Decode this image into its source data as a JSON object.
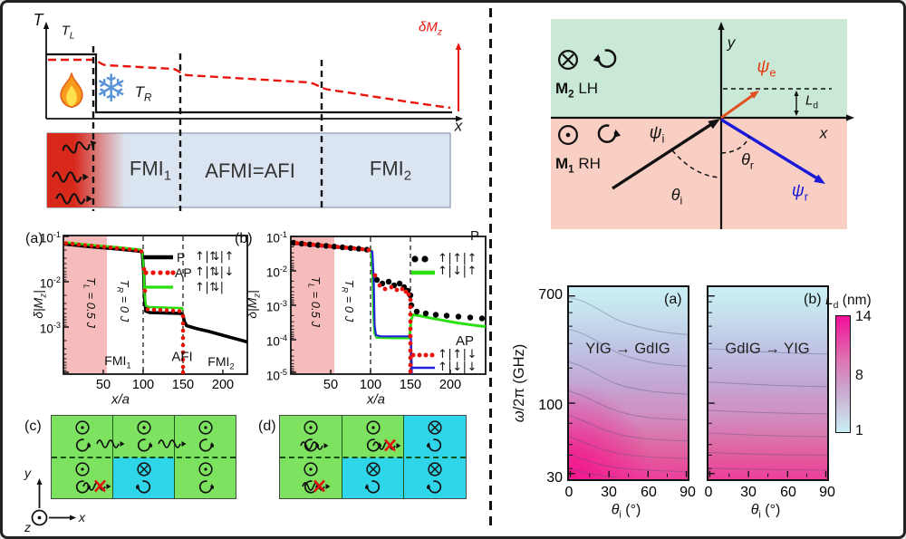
{
  "schematic": {
    "axis_t": "T",
    "axis_x": "x",
    "t_left": "T<sub>L</sub>",
    "t_right": "T<sub>R</sub>",
    "delta_mz": "δM<sub>z</sub>",
    "regions": [
      "FMI<sub>1</sub>",
      "AFMI=AFI",
      "FMI<sub>2</sub>"
    ],
    "snowflake_glyph": "❄",
    "colors": {
      "strip": "#dbe5f1",
      "hot_gradient": "#d8281c",
      "curve": "#e8150c"
    }
  },
  "panel_a": {
    "tag": "(a)",
    "ylabel": "δ|M<sub>z</sub>|",
    "yticks": [
      "10<sup>-1</sup>",
      "10<sup>-2</sup>",
      "10<sup>-3</sup>"
    ],
    "xticks": [
      "50",
      "100",
      "150",
      "200"
    ],
    "xlabel": "x/a",
    "zone_left": "T<sub>L</sub> = 0.5 <i>J</i>",
    "zone_right": "T<sub>R</sub> = 0 <i>J</i>",
    "region_labels": [
      "FMI<sub>1</sub>",
      "AFI",
      "FMI<sub>2</sub>"
    ],
    "legend": {
      "p": "P",
      "ap": "AP",
      "rows": [
        "↑|⇅|↑",
        "↑|⇅|↓",
        "↑|⇅|"
      ]
    }
  },
  "panel_b": {
    "tag": "(b)",
    "ylabel": "δ|M<sub>z</sub>|",
    "yticks": [
      "10<sup>-1</sup>",
      "10<sup>-2</sup>",
      "10<sup>-3</sup>",
      "10<sup>-4</sup>",
      "10<sup>-5</sup>"
    ],
    "xticks": [
      "50",
      "100",
      "150",
      "200"
    ],
    "xlabel": "x/a",
    "zone_left": "T<sub>L</sub> = 0.5 <i>J</i>",
    "zone_right": "T<sub>R</sub> = 0 <i>J</i>",
    "legend": {
      "p": "P",
      "ap": "AP",
      "p_rows": [
        "↑|↑|↑",
        "↑|↓|↑"
      ],
      "ap_rows": [
        "↑|↑|↓",
        "↑|↓|↓"
      ]
    }
  },
  "panel_c": {
    "tag": "(c)",
    "axes": {
      "x": "x",
      "y": "y",
      "z": "z"
    },
    "cells": {
      "top": [
        "out-ccw",
        "out-ccw",
        "out-ccw"
      ],
      "bottom": [
        "out-ccw",
        "in-cw",
        "out-ccw"
      ]
    },
    "links": {
      "top": [
        "magnon",
        "magnon"
      ],
      "bottom_first": "blocked"
    }
  },
  "panel_d": {
    "tag": "(d)",
    "cells": {
      "top": [
        "out-ccw",
        "out-ccw",
        "in-cw"
      ],
      "bottom": [
        "out-ccw",
        "in-cw",
        "in-cw"
      ]
    },
    "links": {
      "top": [
        "magnon",
        "blocked"
      ],
      "bottom_first": "blocked"
    }
  },
  "interface_diagram": {
    "m2": "<b>M<sub>2</sub></b> LH",
    "m1": "<b>M<sub>1</sub></b> RH",
    "axis_x": "x",
    "axis_y": "y",
    "psi_e": "<i>ψ</i><sub>e</sub>",
    "psi_i": "<i>ψ</i><sub>i</sub>",
    "psi_r": "<i>ψ</i><sub>r</sub>",
    "theta_i": "<i>θ</i><sub>i</sub>",
    "theta_r": "<i>θ</i><sub>r</sub>",
    "ld": "<i>L</i><sub>d</sub>",
    "colors": {
      "top_region": "#c9e8d5",
      "bottom_region": "#f9cfc4",
      "psi_e": "#e05020",
      "psi_r": "#1a1ad8"
    }
  },
  "heatmaps": {
    "tag_a": "(a)",
    "tag_b": "(b)",
    "title_a": "YIG → GdIG",
    "title_b": "GdIG → YIG",
    "ylabel": "<i>ω</i>/2π (GHz)",
    "yticks": [
      "700",
      "100",
      "30"
    ],
    "xlabel": "<i>θ</i><sub>i</sub> (°)",
    "xticks": [
      "0",
      "30",
      "60",
      "90"
    ],
    "colorbar": {
      "label": "<i>L</i><sub>d</sub> (nm)",
      "ticks": [
        "14",
        "8",
        "1"
      ],
      "top_color": "#f2109a",
      "bottom_color": "#c9eef3"
    }
  },
  "chart_data": [
    {
      "id": "delta_mz_profile_panel_a",
      "type": "line",
      "panel": "(a)",
      "xlabel": "x/a",
      "ylabel": "δ|Mz|",
      "yscale": "log",
      "xlim": [
        0,
        230
      ],
      "ylim": [
        0.0001,
        0.1
      ],
      "xticks": [
        50,
        100,
        150,
        200
      ],
      "interfaces_x": [
        100,
        150
      ],
      "regions": [
        {
          "label": "FMI1",
          "x": [
            0,
            100
          ]
        },
        {
          "label": "AFI",
          "x": [
            100,
            150
          ]
        },
        {
          "label": "FMI2",
          "x": [
            150,
            230
          ]
        }
      ],
      "shaded_zone": {
        "label": "TL = 0.5 J",
        "x": [
          0,
          55
        ]
      },
      "right_zone_label": "TR = 0 J",
      "series": [
        {
          "name": "P ↑|⇅|↑",
          "style": "thick black line",
          "x": [
            0,
            50,
            100,
            104,
            110,
            150,
            152,
            160,
            180,
            200,
            230
          ],
          "y": [
            0.066,
            0.052,
            0.04,
            0.0022,
            0.0021,
            0.002,
            0.0012,
            0.00095,
            0.00075,
            0.0006,
            0.00045
          ]
        },
        {
          "name": "AP ↑|⇅|↓",
          "style": "red dotted",
          "x": [
            0,
            50,
            100,
            104,
            148,
            150,
            150,
            150
          ],
          "y": [
            0.066,
            0.052,
            0.04,
            0.0024,
            0.0022,
            0.001,
            0.0004,
            0.00012
          ]
        },
        {
          "name": "↑|⇅|",
          "style": "green line",
          "x": [
            0,
            50,
            100,
            104,
            148
          ],
          "y": [
            0.066,
            0.052,
            0.04,
            0.0028,
            0.0026
          ]
        }
      ]
    },
    {
      "id": "delta_mz_profile_panel_b",
      "type": "line",
      "panel": "(b)",
      "xlabel": "x/a",
      "ylabel": "δ|Mz|",
      "yscale": "log",
      "xlim": [
        0,
        230
      ],
      "ylim": [
        1e-05,
        0.1
      ],
      "xticks": [
        50,
        100,
        150,
        200
      ],
      "interfaces_x": [
        100,
        150
      ],
      "shaded_zone": {
        "label": "TL = 0.5 J",
        "x": [
          0,
          55
        ]
      },
      "right_zone_label": "TR = 0 J",
      "series": [
        {
          "name": "P ↑|↑|↑",
          "style": "black dots",
          "x": [
            0,
            50,
            100,
            110,
            125,
            140,
            150,
            155,
            170,
            190,
            210,
            225
          ],
          "y": [
            0.065,
            0.051,
            0.04,
            0.005,
            0.0042,
            0.0035,
            0.001,
            0.00068,
            0.0006,
            0.00055,
            0.0005,
            0.00047
          ]
        },
        {
          "name": "P ↑|↓|↑",
          "style": "green line",
          "x": [
            0,
            50,
            100,
            104,
            106,
            150,
            152,
            160,
            180,
            200,
            230
          ],
          "y": [
            0.065,
            0.051,
            0.04,
            0.005,
            0.00013,
            0.00012,
            0.00055,
            0.0005,
            0.0004,
            0.00032,
            0.00022
          ]
        },
        {
          "name": "AP ↑|↑|↓",
          "style": "red dots",
          "x": [
            0,
            50,
            100,
            108,
            125,
            140,
            148,
            150,
            150
          ],
          "y": [
            0.065,
            0.051,
            0.04,
            0.0055,
            0.0045,
            0.0038,
            0.003,
            0.0003,
            1e-05
          ]
        },
        {
          "name": "AP ↑|↓|↓",
          "style": "blue line",
          "x": [
            0,
            50,
            100,
            104,
            106,
            150,
            152,
            153
          ],
          "y": [
            0.065,
            0.051,
            0.04,
            0.008,
            0.00013,
            0.00012,
            5e-05,
            1e-05
          ]
        }
      ]
    },
    {
      "id": "ld_heatmap_yig_to_gdig",
      "type": "heatmap",
      "panel": "(a)",
      "title": "YIG → GdIG",
      "xlabel": "θi (°)",
      "ylabel": "ω/2π (GHz)",
      "xlim": [
        0,
        90
      ],
      "ylim": [
        30,
        700
      ],
      "yscale": "log",
      "xticks": [
        0,
        30,
        60,
        90
      ],
      "yticks": [
        700,
        100,
        30
      ],
      "colorbar": {
        "label": "Ld (nm)",
        "min": 1,
        "max": 14,
        "ticks": [
          14,
          8,
          1
        ]
      },
      "values_summary": [
        {
          "theta_i": 0,
          "freq_ghz": 30,
          "ld_nm": 14
        },
        {
          "theta_i": 90,
          "freq_ghz": 30,
          "ld_nm": 9
        },
        {
          "theta_i": 0,
          "freq_ghz": 100,
          "ld_nm": 8
        },
        {
          "theta_i": 90,
          "freq_ghz": 100,
          "ld_nm": 6
        },
        {
          "theta_i": 0,
          "freq_ghz": 700,
          "ld_nm": 1.5
        },
        {
          "theta_i": 90,
          "freq_ghz": 700,
          "ld_nm": 1
        }
      ],
      "contour_shape": "contours bend downward with increasing incidence angle; largest Ld at small θi and low frequency"
    },
    {
      "id": "ld_heatmap_gdig_to_yig",
      "type": "heatmap",
      "panel": "(b)",
      "title": "GdIG → YIG",
      "xlabel": "θi (°)",
      "ylabel": "ω/2π (GHz)",
      "xlim": [
        0,
        90
      ],
      "ylim": [
        30,
        700
      ],
      "yscale": "log",
      "xticks": [
        0,
        30,
        60,
        90
      ],
      "yticks": [
        700,
        100,
        30
      ],
      "colorbar": {
        "label": "Ld (nm)",
        "min": 1,
        "max": 14,
        "ticks": [
          14,
          8,
          1
        ]
      },
      "values_summary": [
        {
          "theta_i": 0,
          "freq_ghz": 30,
          "ld_nm": 10
        },
        {
          "theta_i": 90,
          "freq_ghz": 30,
          "ld_nm": 10
        },
        {
          "theta_i": 0,
          "freq_ghz": 100,
          "ld_nm": 6.5
        },
        {
          "theta_i": 90,
          "freq_ghz": 100,
          "ld_nm": 6.5
        },
        {
          "theta_i": 0,
          "freq_ghz": 700,
          "ld_nm": 1
        }
      ],
      "contour_shape": "nearly horizontal contours; weak θi dependence"
    }
  ]
}
